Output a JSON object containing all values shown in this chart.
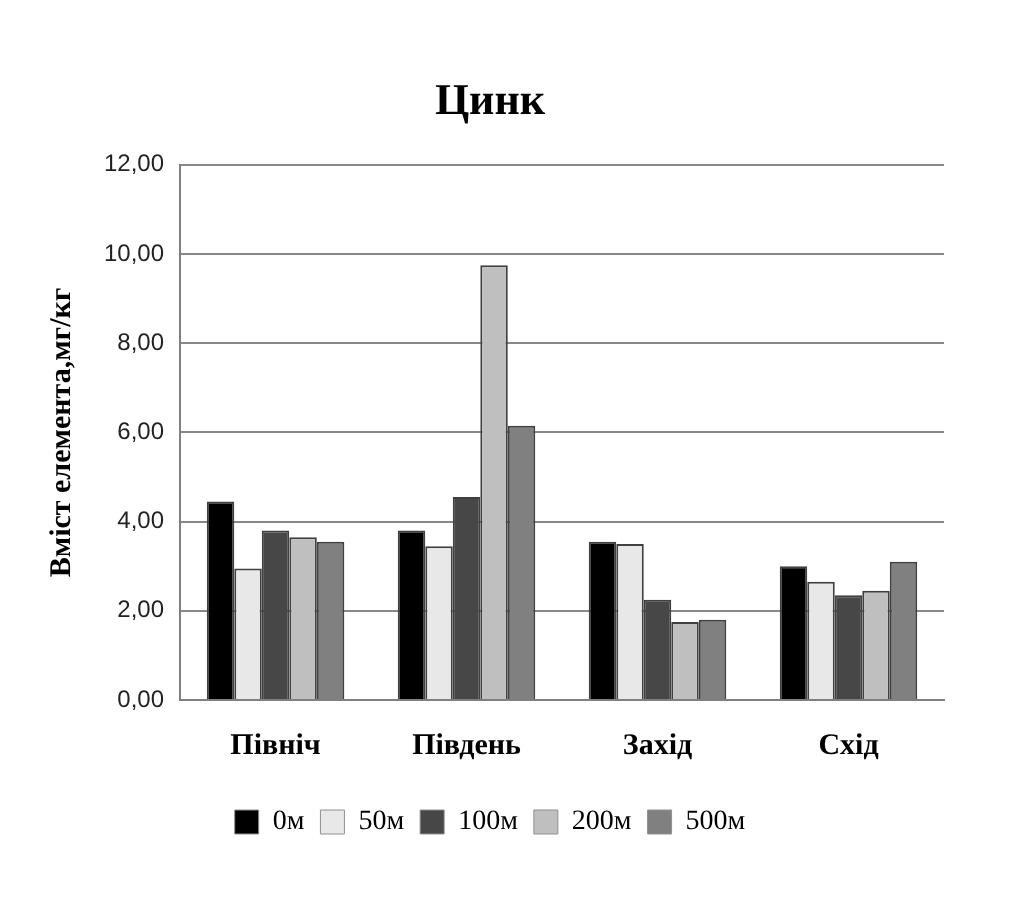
{
  "chart_data": {
    "type": "bar",
    "title": "Цинк",
    "ylabel": "Вміст елемента,мг/кг",
    "categories": [
      "Північ",
      "Південь",
      "Захід",
      "Схід"
    ],
    "series": [
      {
        "name": "0м",
        "color": "#000000",
        "values": [
          4.45,
          3.8,
          3.55,
          3.0
        ]
      },
      {
        "name": "50м",
        "color": "#e8e8e8",
        "values": [
          2.95,
          3.45,
          3.5,
          2.65
        ]
      },
      {
        "name": "100м",
        "color": "#474747",
        "values": [
          3.8,
          4.55,
          2.25,
          2.35
        ]
      },
      {
        "name": "200м",
        "color": "#bfbfbf",
        "values": [
          3.65,
          9.75,
          1.75,
          2.45
        ]
      },
      {
        "name": "500м",
        "color": "#808080",
        "values": [
          3.55,
          6.15,
          1.8,
          3.1
        ]
      }
    ],
    "ylim": [
      0,
      12
    ],
    "yticks": [
      {
        "value": 0,
        "label": "0,00"
      },
      {
        "value": 2,
        "label": "2,00"
      },
      {
        "value": 4,
        "label": "4,00"
      },
      {
        "value": 6,
        "label": "6,00"
      },
      {
        "value": 8,
        "label": "8,00"
      },
      {
        "value": 10,
        "label": "10,00"
      },
      {
        "value": 12,
        "label": "12,00"
      }
    ],
    "grid": "y",
    "legend": "bottom"
  }
}
